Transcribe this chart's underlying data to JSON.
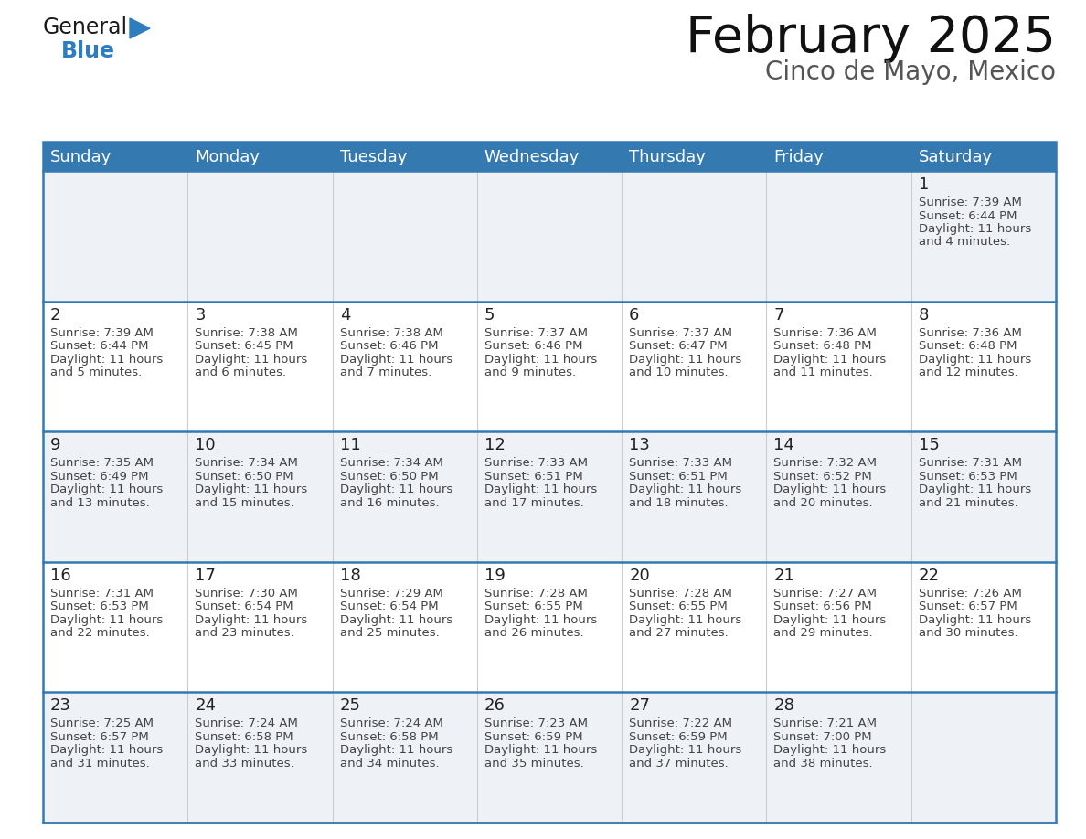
{
  "title": "February 2025",
  "subtitle": "Cinco de Mayo, Mexico",
  "header_color": "#3579B1",
  "header_text_color": "#FFFFFF",
  "cell_bg_odd": "#EEF2F7",
  "cell_bg_even": "#FFFFFF",
  "row_border_color": "#3579B1",
  "col_border_color": "#CCCCCC",
  "outer_border_color": "#3579B1",
  "day_number_color": "#222222",
  "info_text_color": "#444444",
  "background_color": "#FFFFFF",
  "days_of_week": [
    "Sunday",
    "Monday",
    "Tuesday",
    "Wednesday",
    "Thursday",
    "Friday",
    "Saturday"
  ],
  "weeks": [
    [
      {
        "day": "",
        "sunrise": "",
        "sunset": "",
        "daylight": ""
      },
      {
        "day": "",
        "sunrise": "",
        "sunset": "",
        "daylight": ""
      },
      {
        "day": "",
        "sunrise": "",
        "sunset": "",
        "daylight": ""
      },
      {
        "day": "",
        "sunrise": "",
        "sunset": "",
        "daylight": ""
      },
      {
        "day": "",
        "sunrise": "",
        "sunset": "",
        "daylight": ""
      },
      {
        "day": "",
        "sunrise": "",
        "sunset": "",
        "daylight": ""
      },
      {
        "day": "1",
        "sunrise": "7:39 AM",
        "sunset": "6:44 PM",
        "daylight": "11 hours\nand 4 minutes."
      }
    ],
    [
      {
        "day": "2",
        "sunrise": "7:39 AM",
        "sunset": "6:44 PM",
        "daylight": "11 hours\nand 5 minutes."
      },
      {
        "day": "3",
        "sunrise": "7:38 AM",
        "sunset": "6:45 PM",
        "daylight": "11 hours\nand 6 minutes."
      },
      {
        "day": "4",
        "sunrise": "7:38 AM",
        "sunset": "6:46 PM",
        "daylight": "11 hours\nand 7 minutes."
      },
      {
        "day": "5",
        "sunrise": "7:37 AM",
        "sunset": "6:46 PM",
        "daylight": "11 hours\nand 9 minutes."
      },
      {
        "day": "6",
        "sunrise": "7:37 AM",
        "sunset": "6:47 PM",
        "daylight": "11 hours\nand 10 minutes."
      },
      {
        "day": "7",
        "sunrise": "7:36 AM",
        "sunset": "6:48 PM",
        "daylight": "11 hours\nand 11 minutes."
      },
      {
        "day": "8",
        "sunrise": "7:36 AM",
        "sunset": "6:48 PM",
        "daylight": "11 hours\nand 12 minutes."
      }
    ],
    [
      {
        "day": "9",
        "sunrise": "7:35 AM",
        "sunset": "6:49 PM",
        "daylight": "11 hours\nand 13 minutes."
      },
      {
        "day": "10",
        "sunrise": "7:34 AM",
        "sunset": "6:50 PM",
        "daylight": "11 hours\nand 15 minutes."
      },
      {
        "day": "11",
        "sunrise": "7:34 AM",
        "sunset": "6:50 PM",
        "daylight": "11 hours\nand 16 minutes."
      },
      {
        "day": "12",
        "sunrise": "7:33 AM",
        "sunset": "6:51 PM",
        "daylight": "11 hours\nand 17 minutes."
      },
      {
        "day": "13",
        "sunrise": "7:33 AM",
        "sunset": "6:51 PM",
        "daylight": "11 hours\nand 18 minutes."
      },
      {
        "day": "14",
        "sunrise": "7:32 AM",
        "sunset": "6:52 PM",
        "daylight": "11 hours\nand 20 minutes."
      },
      {
        "day": "15",
        "sunrise": "7:31 AM",
        "sunset": "6:53 PM",
        "daylight": "11 hours\nand 21 minutes."
      }
    ],
    [
      {
        "day": "16",
        "sunrise": "7:31 AM",
        "sunset": "6:53 PM",
        "daylight": "11 hours\nand 22 minutes."
      },
      {
        "day": "17",
        "sunrise": "7:30 AM",
        "sunset": "6:54 PM",
        "daylight": "11 hours\nand 23 minutes."
      },
      {
        "day": "18",
        "sunrise": "7:29 AM",
        "sunset": "6:54 PM",
        "daylight": "11 hours\nand 25 minutes."
      },
      {
        "day": "19",
        "sunrise": "7:28 AM",
        "sunset": "6:55 PM",
        "daylight": "11 hours\nand 26 minutes."
      },
      {
        "day": "20",
        "sunrise": "7:28 AM",
        "sunset": "6:55 PM",
        "daylight": "11 hours\nand 27 minutes."
      },
      {
        "day": "21",
        "sunrise": "7:27 AM",
        "sunset": "6:56 PM",
        "daylight": "11 hours\nand 29 minutes."
      },
      {
        "day": "22",
        "sunrise": "7:26 AM",
        "sunset": "6:57 PM",
        "daylight": "11 hours\nand 30 minutes."
      }
    ],
    [
      {
        "day": "23",
        "sunrise": "7:25 AM",
        "sunset": "6:57 PM",
        "daylight": "11 hours\nand 31 minutes."
      },
      {
        "day": "24",
        "sunrise": "7:24 AM",
        "sunset": "6:58 PM",
        "daylight": "11 hours\nand 33 minutes."
      },
      {
        "day": "25",
        "sunrise": "7:24 AM",
        "sunset": "6:58 PM",
        "daylight": "11 hours\nand 34 minutes."
      },
      {
        "day": "26",
        "sunrise": "7:23 AM",
        "sunset": "6:59 PM",
        "daylight": "11 hours\nand 35 minutes."
      },
      {
        "day": "27",
        "sunrise": "7:22 AM",
        "sunset": "6:59 PM",
        "daylight": "11 hours\nand 37 minutes."
      },
      {
        "day": "28",
        "sunrise": "7:21 AM",
        "sunset": "7:00 PM",
        "daylight": "11 hours\nand 38 minutes."
      },
      {
        "day": "",
        "sunrise": "",
        "sunset": "",
        "daylight": ""
      }
    ]
  ],
  "logo_text1": "General",
  "logo_text2": "Blue",
  "logo_color1": "#1A1A1A",
  "logo_color2": "#2E7DBE",
  "triangle_color": "#2E7DBE",
  "title_fontsize": 40,
  "subtitle_fontsize": 20,
  "header_fontsize": 13,
  "day_num_fontsize": 13,
  "cell_text_fontsize": 9.5
}
